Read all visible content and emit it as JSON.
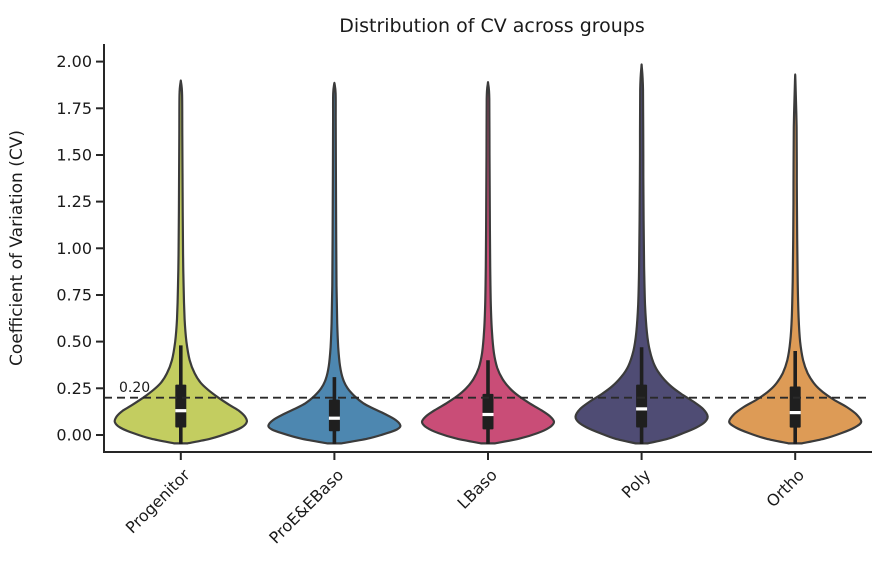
{
  "chart_data": {
    "type": "violin",
    "title": "Distribution of CV across groups",
    "xlabel": "",
    "ylabel": "Coefficient of Variation (CV)",
    "categories": [
      "Progenitor",
      "ProE&EBaso",
      "LBaso",
      "Poly",
      "Ortho"
    ],
    "ylim": [
      -0.09,
      2.09
    ],
    "yticks": [
      0.0,
      0.25,
      0.5,
      0.75,
      1.0,
      1.25,
      1.5,
      1.75,
      2.0
    ],
    "grid": false,
    "legend": null,
    "axis_color": "#262626",
    "violin_outline_color": "#3b3b3b",
    "inner_box_color": "#1f1f1f",
    "median_color": "#ffffff",
    "threshold": {
      "value": 0.2,
      "label": "0.20",
      "line_style": "dashed",
      "line_color": "#2a2a2a"
    },
    "groups": [
      {
        "name": "Progenitor",
        "color": "#c3cd60",
        "stats": {
          "min": 0.0,
          "q1": 0.04,
          "median": 0.13,
          "q3": 0.27,
          "whisker_low": 0.0,
          "whisker_high": 0.48,
          "max": 1.89
        },
        "profile": [
          [
            -0.045,
            0.1
          ],
          [
            -0.02,
            0.45
          ],
          [
            0.01,
            0.72
          ],
          [
            0.04,
            0.92
          ],
          [
            0.07,
            1.0
          ],
          [
            0.1,
            0.97
          ],
          [
            0.13,
            0.88
          ],
          [
            0.16,
            0.74
          ],
          [
            0.2,
            0.57
          ],
          [
            0.24,
            0.42
          ],
          [
            0.28,
            0.3
          ],
          [
            0.33,
            0.21
          ],
          [
            0.4,
            0.135
          ],
          [
            0.5,
            0.085
          ],
          [
            0.62,
            0.058
          ],
          [
            0.8,
            0.042
          ],
          [
            1.0,
            0.033
          ],
          [
            1.3,
            0.027
          ],
          [
            1.6,
            0.023
          ],
          [
            1.82,
            0.02
          ],
          [
            1.89,
            0.003
          ]
        ]
      },
      {
        "name": "ProE&EBaso",
        "color": "#4d87b0",
        "stats": {
          "min": 0.0,
          "q1": 0.02,
          "median": 0.09,
          "q3": 0.19,
          "whisker_low": 0.0,
          "whisker_high": 0.31,
          "max": 1.88
        },
        "profile": [
          [
            -0.045,
            0.1
          ],
          [
            -0.02,
            0.5
          ],
          [
            0.01,
            0.8
          ],
          [
            0.03,
            0.95
          ],
          [
            0.05,
            1.0
          ],
          [
            0.08,
            0.93
          ],
          [
            0.11,
            0.78
          ],
          [
            0.14,
            0.6
          ],
          [
            0.17,
            0.44
          ],
          [
            0.21,
            0.3
          ],
          [
            0.25,
            0.2
          ],
          [
            0.3,
            0.13
          ],
          [
            0.37,
            0.085
          ],
          [
            0.47,
            0.058
          ],
          [
            0.6,
            0.042
          ],
          [
            0.8,
            0.032
          ],
          [
            1.05,
            0.027
          ],
          [
            1.4,
            0.023
          ],
          [
            1.7,
            0.02
          ],
          [
            1.83,
            0.018
          ],
          [
            1.88,
            0.003
          ]
        ]
      },
      {
        "name": "LBaso",
        "color": "#c94d77",
        "stats": {
          "min": 0.0,
          "q1": 0.03,
          "median": 0.11,
          "q3": 0.22,
          "whisker_low": 0.0,
          "whisker_high": 0.4,
          "max": 1.88
        },
        "profile": [
          [
            -0.045,
            0.1
          ],
          [
            -0.02,
            0.47
          ],
          [
            0.01,
            0.75
          ],
          [
            0.04,
            0.93
          ],
          [
            0.07,
            1.0
          ],
          [
            0.1,
            0.94
          ],
          [
            0.13,
            0.82
          ],
          [
            0.17,
            0.63
          ],
          [
            0.21,
            0.46
          ],
          [
            0.25,
            0.33
          ],
          [
            0.3,
            0.22
          ],
          [
            0.36,
            0.14
          ],
          [
            0.44,
            0.09
          ],
          [
            0.55,
            0.06
          ],
          [
            0.7,
            0.043
          ],
          [
            0.9,
            0.033
          ],
          [
            1.2,
            0.027
          ],
          [
            1.5,
            0.023
          ],
          [
            1.8,
            0.02
          ],
          [
            1.88,
            0.003
          ]
        ]
      },
      {
        "name": "Poly",
        "color": "#4f4c74",
        "stats": {
          "min": 0.0,
          "q1": 0.04,
          "median": 0.14,
          "q3": 0.27,
          "whisker_low": 0.0,
          "whisker_high": 0.47,
          "max": 1.97
        },
        "profile": [
          [
            -0.045,
            0.09
          ],
          [
            -0.02,
            0.4
          ],
          [
            0.01,
            0.63
          ],
          [
            0.04,
            0.83
          ],
          [
            0.07,
            0.96
          ],
          [
            0.1,
            1.0
          ],
          [
            0.14,
            0.93
          ],
          [
            0.18,
            0.78
          ],
          [
            0.22,
            0.6
          ],
          [
            0.26,
            0.45
          ],
          [
            0.31,
            0.31
          ],
          [
            0.37,
            0.2
          ],
          [
            0.45,
            0.125
          ],
          [
            0.55,
            0.08
          ],
          [
            0.7,
            0.052
          ],
          [
            0.9,
            0.038
          ],
          [
            1.15,
            0.03
          ],
          [
            1.5,
            0.025
          ],
          [
            1.85,
            0.021
          ],
          [
            1.97,
            0.003
          ]
        ]
      },
      {
        "name": "Ortho",
        "color": "#dd9b56",
        "stats": {
          "min": 0.0,
          "q1": 0.04,
          "median": 0.12,
          "q3": 0.26,
          "whisker_low": 0.0,
          "whisker_high": 0.45,
          "max": 1.9
        },
        "profile": [
          [
            -0.045,
            0.1
          ],
          [
            -0.02,
            0.44
          ],
          [
            0.01,
            0.7
          ],
          [
            0.04,
            0.9
          ],
          [
            0.07,
            1.0
          ],
          [
            0.11,
            0.93
          ],
          [
            0.15,
            0.78
          ],
          [
            0.19,
            0.58
          ],
          [
            0.23,
            0.42
          ],
          [
            0.27,
            0.3
          ],
          [
            0.33,
            0.19
          ],
          [
            0.4,
            0.12
          ],
          [
            0.5,
            0.075
          ],
          [
            0.63,
            0.052
          ],
          [
            0.82,
            0.038
          ],
          [
            1.05,
            0.03
          ],
          [
            1.35,
            0.025
          ],
          [
            1.65,
            0.021
          ],
          [
            1.9,
            0.003
          ]
        ]
      }
    ]
  }
}
